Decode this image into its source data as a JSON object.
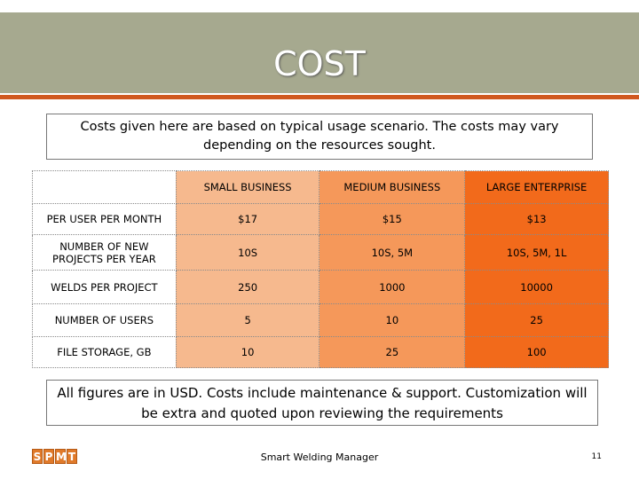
{
  "slide": {
    "title": "COST",
    "intro_note": "Costs given here are based on typical usage scenario. The costs may vary depending on the resources sought.",
    "footer_note": "All figures are in USD. Costs include maintenance & support. Customization will be extra and quoted upon reviewing the requirements",
    "footer_text": "Smart Welding Manager",
    "page_number": "11",
    "logo_letters": [
      "S",
      "P",
      "M",
      "T"
    ]
  },
  "table": {
    "columns": [
      "SMALL BUSINESS",
      "MEDIUM BUSINESS",
      "LARGE ENTERPRISE"
    ],
    "rows": [
      {
        "label": "PER USER PER MONTH",
        "values": [
          "$17",
          "$15",
          "$13"
        ]
      },
      {
        "label": "NUMBER OF NEW PROJECTS PER YEAR",
        "values": [
          "10S",
          "10S, 5M",
          "10S, 5M, 1L"
        ]
      },
      {
        "label": "WELDS PER PROJECT",
        "values": [
          "250",
          "1000",
          "10000"
        ]
      },
      {
        "label": "NUMBER OF USERS",
        "values": [
          "5",
          "10",
          "25"
        ]
      },
      {
        "label": "FILE STORAGE, GB",
        "values": [
          "10",
          "25",
          "100"
        ]
      }
    ]
  },
  "colors": {
    "title_bar": "#a6a98f",
    "accent_line": "#d0581f",
    "small_business": "#f6b98e",
    "medium_business": "#f5985a",
    "large_enterprise": "#f26a1b"
  }
}
